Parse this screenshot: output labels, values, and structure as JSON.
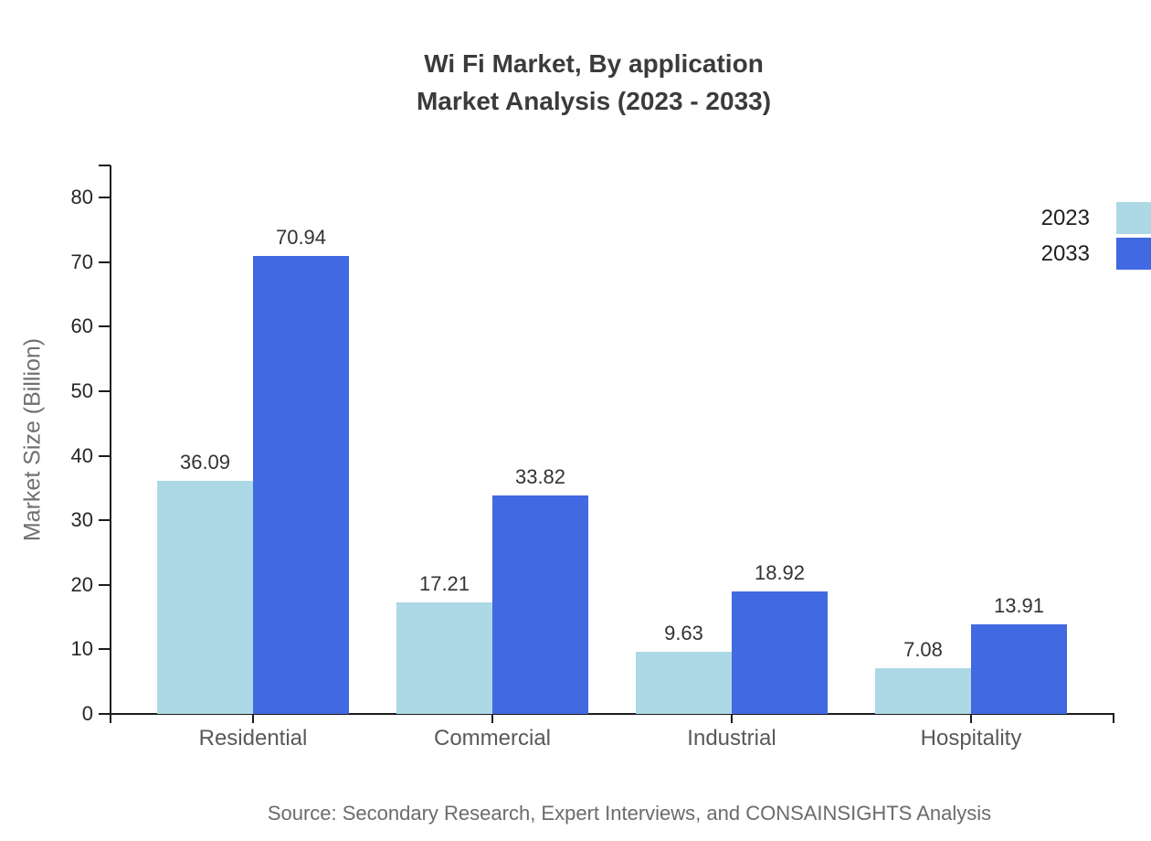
{
  "chart": {
    "title_line1": "Wi Fi Market, By application",
    "title_line2": "Market Analysis (2023 - 2033)",
    "ylabel": "Market Size (Billion)",
    "source": "Source: Secondary Research, Expert Interviews, and CONSAINSIGHTS Analysis"
  },
  "chart_data": {
    "type": "bar",
    "title": "Wi Fi Market, By application",
    "subtitle": "Market Analysis (2023 - 2033)",
    "categories": [
      "Residential",
      "Commercial",
      "Industrial",
      "Hospitality"
    ],
    "series": [
      {
        "name": "2023",
        "color": "#ADD8E6",
        "values": [
          36.09,
          17.21,
          9.63,
          7.08
        ]
      },
      {
        "name": "2033",
        "color": "#4169E1",
        "values": [
          70.94,
          33.82,
          18.92,
          13.91
        ]
      }
    ],
    "xlabel": "",
    "ylabel": "Market Size (Billion)",
    "ylim": [
      0,
      80
    ],
    "yticks": [
      0,
      10,
      20,
      30,
      40,
      50,
      60,
      70,
      80
    ],
    "grid": false,
    "legend_position": "top-right",
    "value_labels": true,
    "source": "Source: Secondary Research, Expert Interviews, and CONSAINSIGHTS Analysis"
  }
}
